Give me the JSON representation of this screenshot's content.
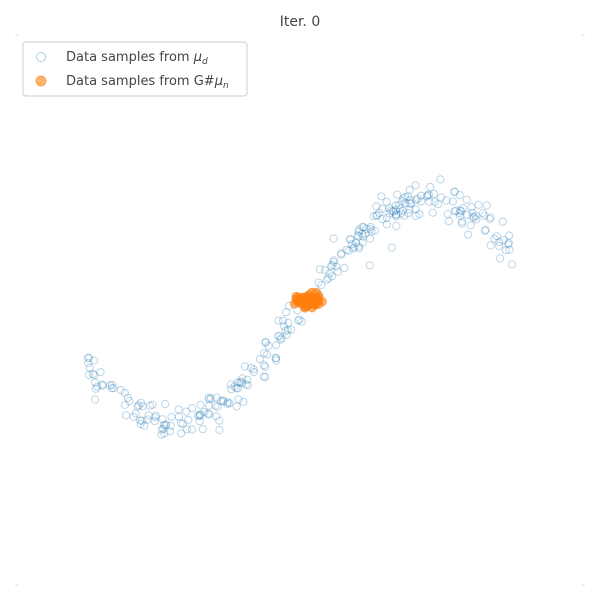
{
  "chart_data": {
    "type": "scatter",
    "title": "Iter. 0",
    "xlabel": "",
    "ylabel": "",
    "xlim": [
      -1.0,
      1.0
    ],
    "ylim": [
      -1.5,
      1.5
    ],
    "grid": false,
    "legend": {
      "placement": "top-left",
      "entries": [
        {
          "text": "Data samples from ",
          "symbol": "μ",
          "subscript": "d"
        },
        {
          "text": "Data samples from G#",
          "symbol": "μ",
          "subscript": "n"
        }
      ]
    },
    "colors": {
      "data": "#1f77b4",
      "generated": "#ff7f0e",
      "axis_ticks": "#dddddd",
      "legend_border": "#cccccc",
      "text": "#444444"
    },
    "series": [
      {
        "name": "Data samples from μd",
        "marker": "hollow-circle",
        "opacity": 0.3,
        "curve": "y = 0.6·sin(3.5·x) with noise σ≈0.05",
        "x_range": [
          -0.75,
          0.75
        ],
        "count": 300
      },
      {
        "name": "Data samples from G#μn",
        "marker": "filled-circle",
        "opacity": 0.6,
        "center": [
          0.03,
          0.05
        ],
        "spread": [
          0.02,
          0.02
        ],
        "count": 60
      }
    ]
  }
}
